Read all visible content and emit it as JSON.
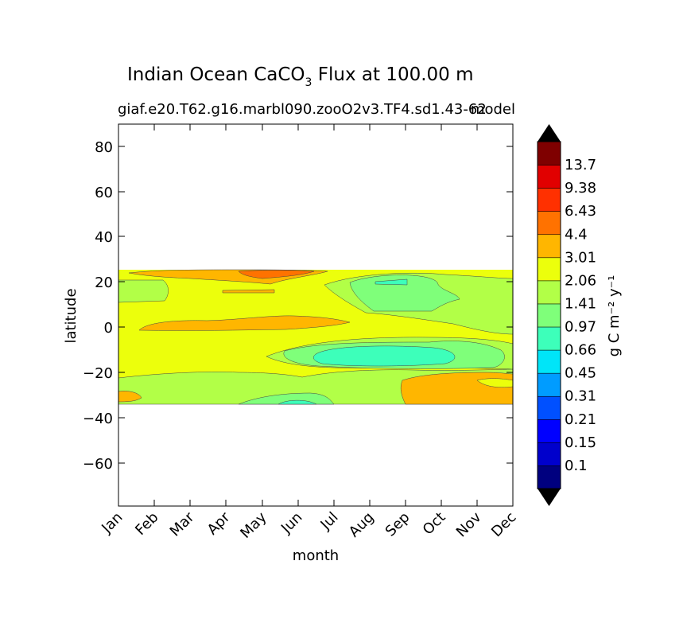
{
  "chart_data": {
    "type": "heatmap",
    "title_main": "Indian Ocean CaCO",
    "title_sub": "3",
    "title_rest": " Flux at 100.00 m",
    "subtitle_left": "giaf.e20.T62.g16.marbl090.zooO2v3.TF4.sd1.43-62",
    "subtitle_right": "model",
    "xlabel": "month",
    "ylabel": "latitude",
    "x_categories": [
      "Jan",
      "Feb",
      "Mar",
      "Apr",
      "May",
      "Jun",
      "Jul",
      "Aug",
      "Sep",
      "Oct",
      "Nov",
      "Dec"
    ],
    "y_ticks": [
      "80",
      "60",
      "40",
      "20",
      "0",
      "−20",
      "−40",
      "−60"
    ],
    "ylim": [
      -79,
      90
    ],
    "data_lat_range": [
      -34,
      25
    ],
    "colorbar": {
      "label": "g C m⁻² y⁻¹",
      "levels": [
        "0.1",
        "0.15",
        "0.21",
        "0.31",
        "0.45",
        "0.66",
        "0.97",
        "1.41",
        "2.06",
        "3.01",
        "4.4",
        "6.43",
        "9.38",
        "13.7"
      ],
      "colors": [
        "#00007f",
        "#0000cc",
        "#0000ff",
        "#0050ff",
        "#009cff",
        "#00e5f8",
        "#3dffba",
        "#7fff7a",
        "#b2ff47",
        "#ecff0c",
        "#ffb600",
        "#ff7200",
        "#ff3000",
        "#e10000",
        "#7f0000"
      ],
      "extend": "both"
    },
    "regions": [
      {
        "lat_range": [
          21,
          25
        ],
        "months": "Jan-Jul",
        "level": "3.01-4.4",
        "note": "orange band near 22N"
      },
      {
        "lat_range": [
          -3,
          3
        ],
        "months": "Feb-Aug",
        "level": "3.01-4.4"
      },
      {
        "lat_range": [
          5,
          22
        ],
        "months": "Jul-Nov",
        "level": "1.41-2.06"
      },
      {
        "lat_range": [
          -17,
          -5
        ],
        "months": "Jun-Oct",
        "level": "0.97-1.41"
      },
      {
        "lat_range": [
          -34,
          -20
        ],
        "months": "Sep-Dec",
        "level": "3.01-4.4"
      }
    ]
  }
}
